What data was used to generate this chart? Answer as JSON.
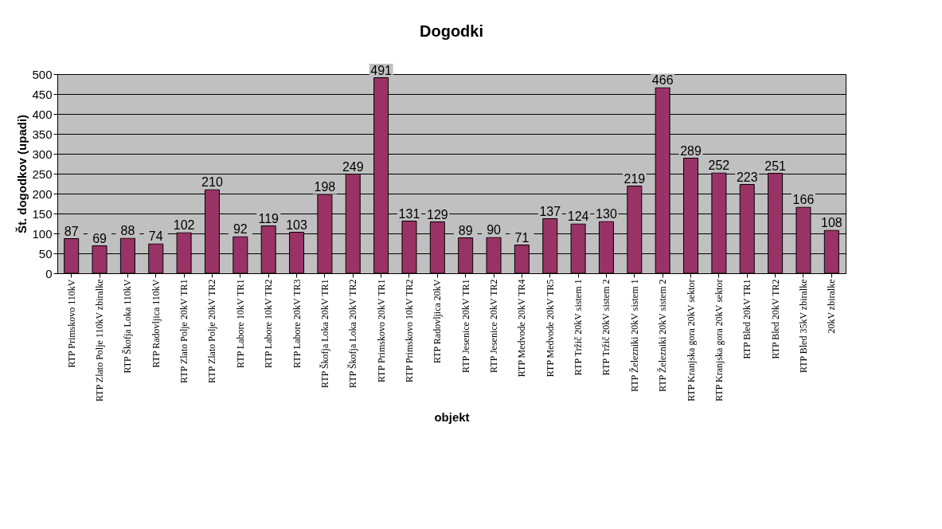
{
  "chart_data": {
    "type": "bar",
    "title": "Dogodki",
    "xlabel": "objekt",
    "ylabel": "Št. dogodkov (upadi)",
    "categories": [
      "RTP Primskovo 110kV",
      "RTP Zlato Polje 110kV zbiralke",
      "RTP Škofja Loka 110kV",
      "RTP Radovljica 110kV",
      "RTP Zlato Polje 20kV TR1",
      "RTP Zlato Polje 20kV TR2",
      "RTP Labore 10kV TR1",
      "RTP Labore 10kV TR2",
      "RTP Labore 20kV TR3",
      "RTP Škofja Loka 20kV TR1",
      "RTP Škofja Loka 20kV TR2",
      "RTP Primskovo 20kV TR1",
      "RTP Primskovo 10kV TR2",
      "RTP Radovljica 20kV",
      "RTP Jesenice 20kV TR1",
      "RTP Jesenice 20kV TR2",
      "RTP Medvode 20kV TR4",
      "RTP Medvode 20kV TR5",
      "RTP Tržič 20kV sistem 1",
      "RTP Tržič 20kV sistem 2",
      "RTP Železniki 20kV sistem 1",
      "RTP Železniki 20kV sistem 2",
      "RTP Kranjska gora 20kV sektor",
      "RTP Kranjska gora 20kV sektor",
      "RTP Bled 20kV TR1",
      "RTP Bled 20kV TR2",
      "RTP Bled 35kV zbiralke",
      "20kV zbiralke"
    ],
    "values": [
      87,
      69,
      88,
      74,
      102,
      210,
      92,
      119,
      103,
      198,
      249,
      491,
      131,
      129,
      89,
      90,
      71,
      137,
      124,
      130,
      219,
      466,
      289,
      252,
      223,
      251,
      166,
      108
    ],
    "color": "#993366",
    "ylim": [
      0,
      500
    ],
    "yticks": [
      0,
      50,
      100,
      150,
      200,
      250,
      300,
      350,
      400,
      450,
      500
    ],
    "grid": "y",
    "data_labels": true
  }
}
